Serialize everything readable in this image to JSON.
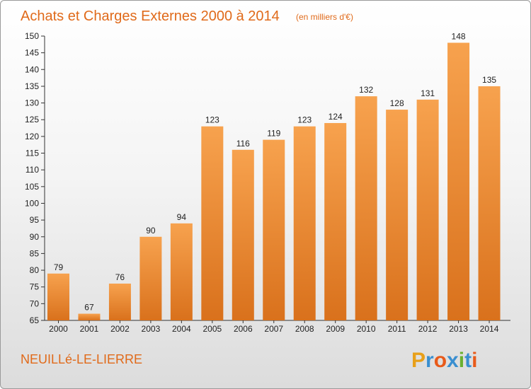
{
  "chart_data": {
    "type": "bar",
    "title": "Achats et Charges Externes 2000 à 2014",
    "unit": "(en milliers d'€)",
    "categories": [
      "2000",
      "2001",
      "2002",
      "2003",
      "2004",
      "2005",
      "2006",
      "2007",
      "2008",
      "2009",
      "2010",
      "2011",
      "2012",
      "2013",
      "2014"
    ],
    "values": [
      79,
      67,
      76,
      90,
      94,
      123,
      116,
      119,
      123,
      124,
      132,
      128,
      131,
      148,
      135
    ],
    "ylim": [
      65,
      150
    ],
    "yticks": [
      65,
      70,
      75,
      80,
      85,
      90,
      95,
      100,
      105,
      110,
      115,
      120,
      125,
      130,
      135,
      140,
      145,
      150
    ],
    "grid": false,
    "bar_color_light": "#f7a24e",
    "bar_color_dark": "#d9711c"
  },
  "location": "NEUILLé-LE-LIERRE",
  "logo": {
    "letters": [
      "P",
      "r",
      "o",
      "x",
      "i",
      "t",
      "i"
    ],
    "colors": [
      "#e8a01a",
      "#3a8fd0",
      "#e85a1a",
      "#3a8fd0",
      "#6ab030",
      "#3a8fd0",
      "#e85a1a"
    ]
  }
}
